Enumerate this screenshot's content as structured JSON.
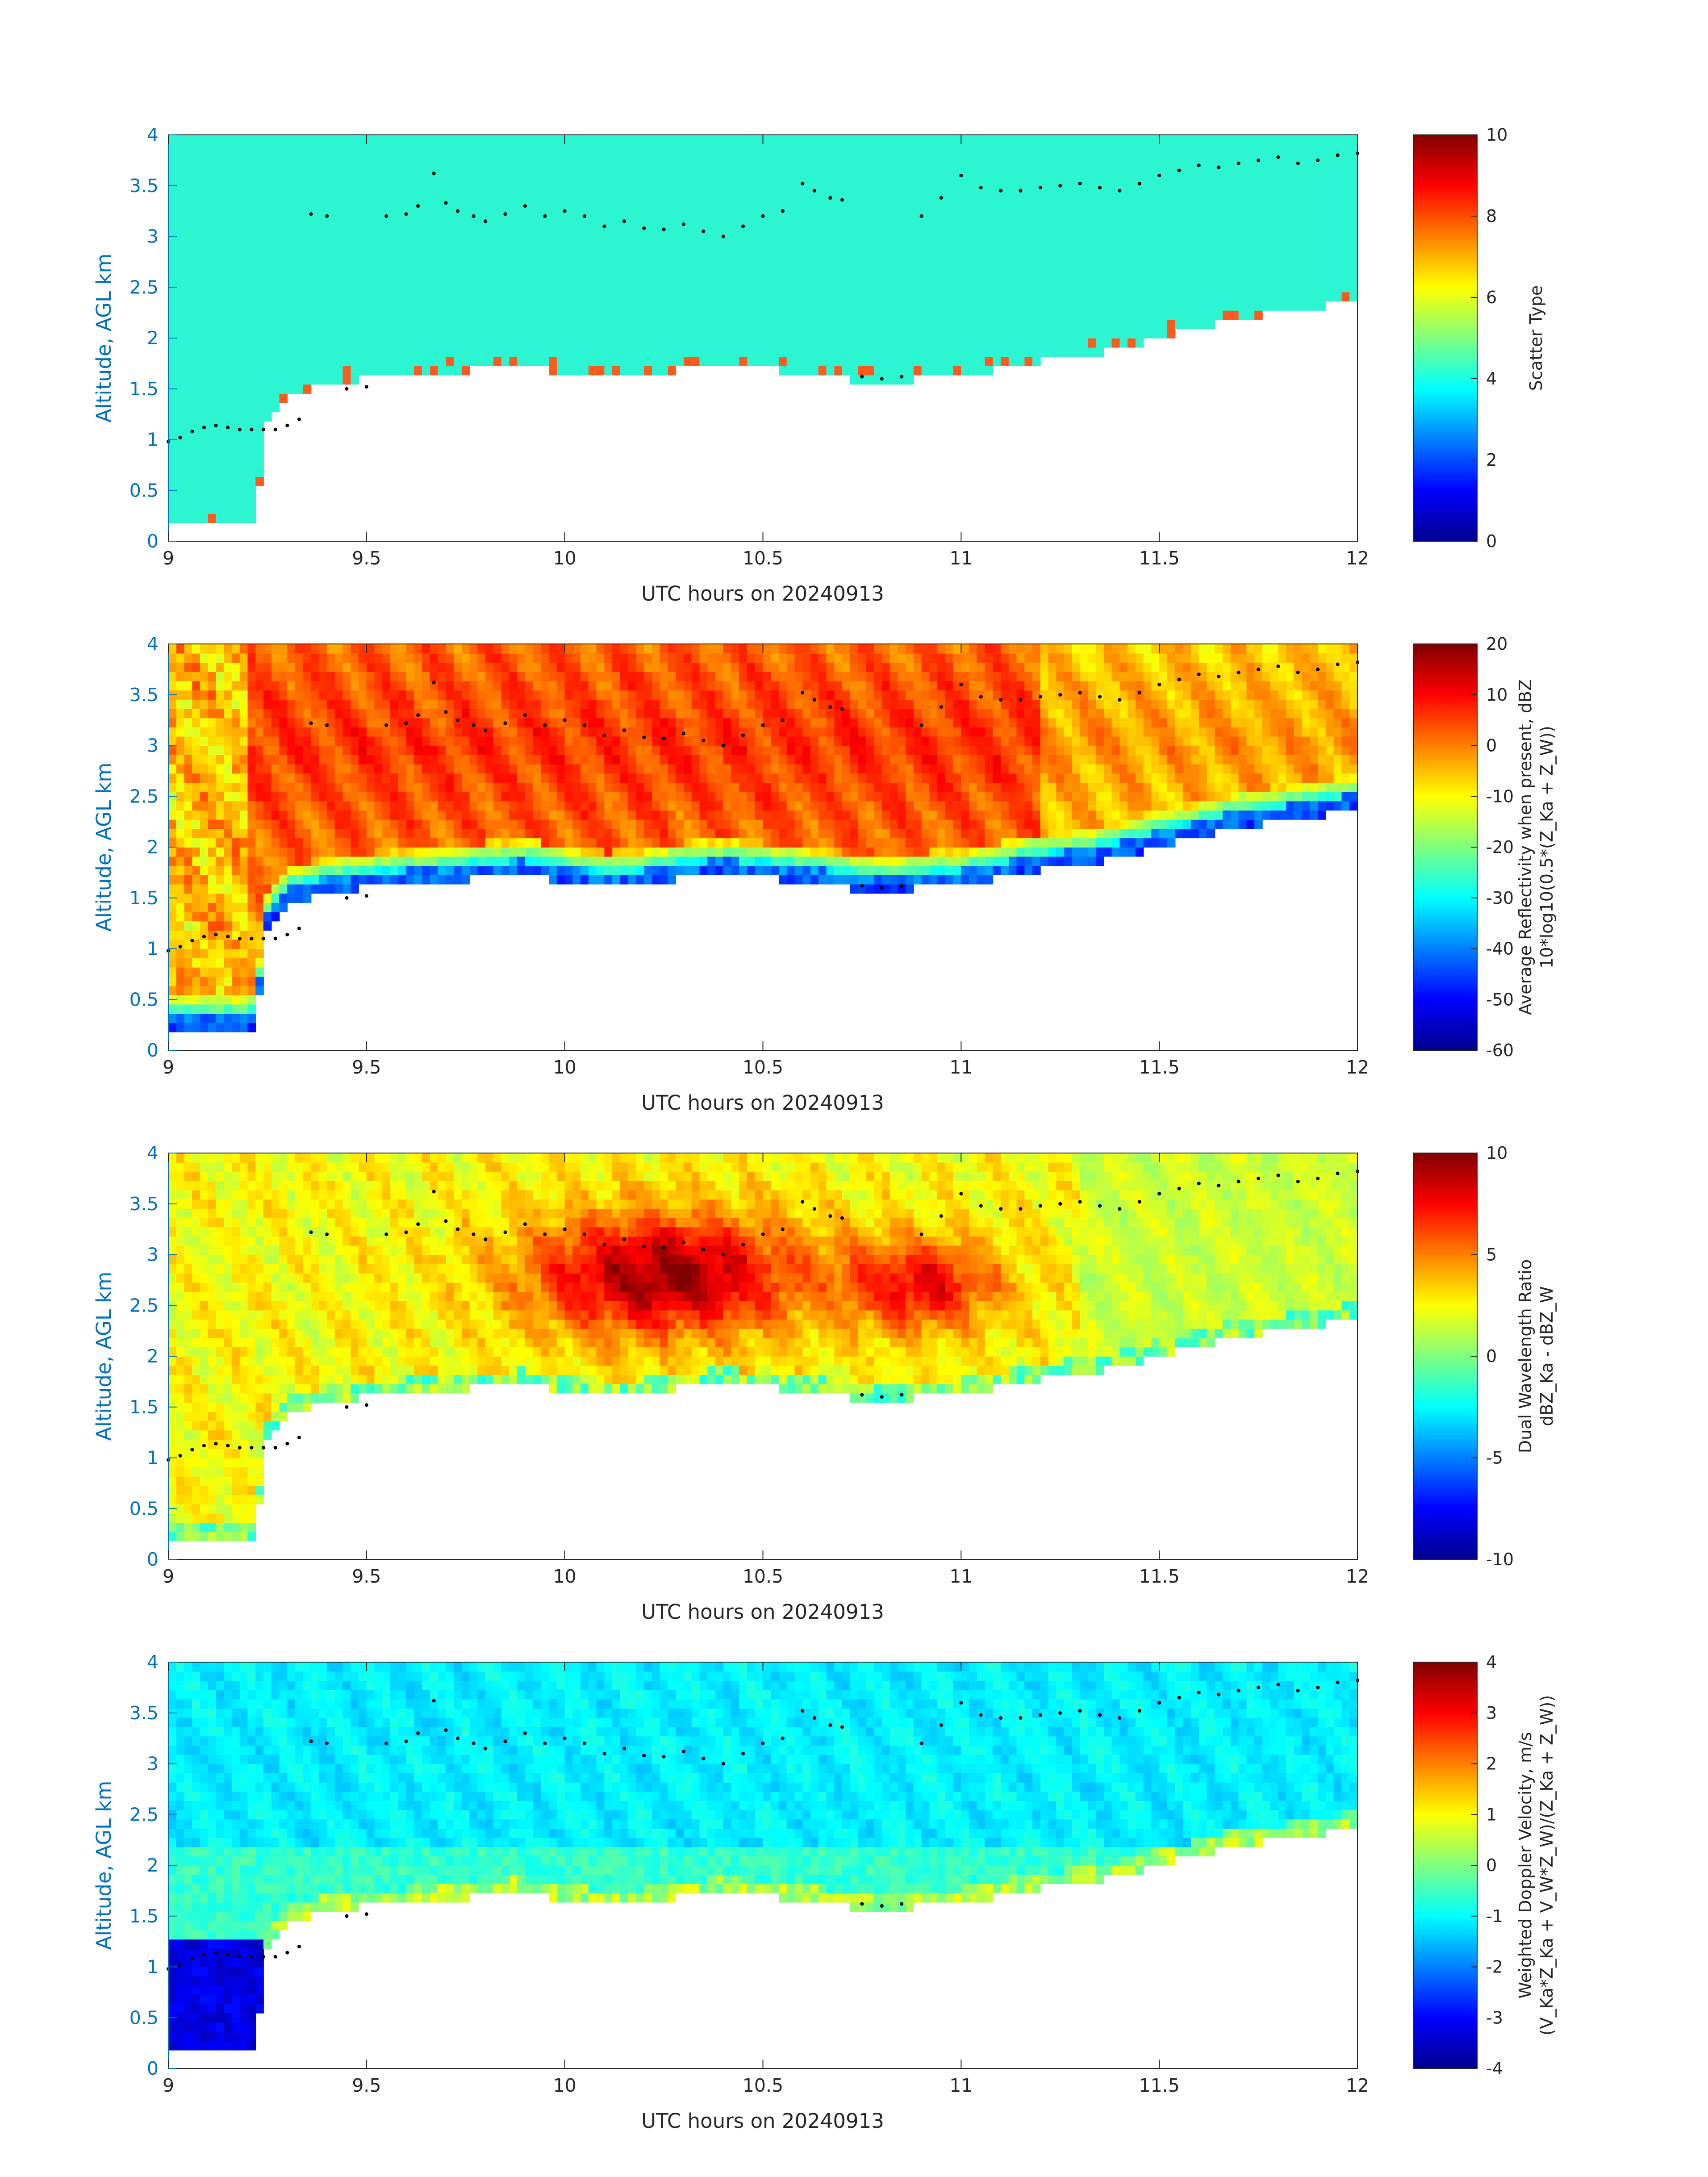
{
  "chart_data": [
    {
      "type": "heatmap",
      "panel": 1,
      "x": {
        "label": "UTC hours on 20240913",
        "lim": [
          9,
          12
        ],
        "ticks": [
          9,
          9.5,
          10,
          10.5,
          11,
          11.5,
          12
        ],
        "tick_labels": [
          "9",
          "9.5",
          "10",
          "10.5",
          "11",
          "11.5",
          "12"
        ]
      },
      "y": {
        "label": "Altitude, AGL km",
        "lim": [
          0,
          4
        ],
        "ticks": [
          0,
          0.5,
          1,
          1.5,
          2,
          2.5,
          3,
          3.5,
          4
        ],
        "tick_labels": [
          "0",
          "0.5",
          "1",
          "1.5",
          "2",
          "2.5",
          "3",
          "3.5",
          "4"
        ]
      },
      "colorbar": {
        "label_lines": [
          "Scatter Type"
        ],
        "lim": [
          0,
          10
        ],
        "ticks": [
          0,
          2,
          4,
          6,
          8,
          10
        ],
        "tick_labels": [
          "0",
          "2",
          "4",
          "6",
          "8",
          "10"
        ],
        "colormap": "jet"
      },
      "field": "scatter_type",
      "dominant_value": 4,
      "colors": {
        "cloud": "#2cf5d2",
        "precip_patches": "#ff5a1e"
      }
    },
    {
      "type": "heatmap",
      "panel": 2,
      "x": {
        "label": "UTC hours on 20240913",
        "lim": [
          9,
          12
        ],
        "ticks": [
          9,
          9.5,
          10,
          10.5,
          11,
          11.5,
          12
        ],
        "tick_labels": [
          "9",
          "9.5",
          "10",
          "10.5",
          "11",
          "11.5",
          "12"
        ]
      },
      "y": {
        "label": "Altitude, AGL km",
        "lim": [
          0,
          4
        ],
        "ticks": [
          0,
          0.5,
          1,
          1.5,
          2,
          2.5,
          3,
          3.5,
          4
        ],
        "tick_labels": [
          "0",
          "0.5",
          "1",
          "1.5",
          "2",
          "2.5",
          "3",
          "3.5",
          "4"
        ]
      },
      "colorbar": {
        "label_lines": [
          "Average Reflectivity when present, dBZ",
          "10*log10(0.5*(Z_Ka + Z_W))"
        ],
        "lim": [
          -60,
          20
        ],
        "ticks": [
          -60,
          -50,
          -40,
          -30,
          -20,
          -10,
          0,
          10,
          20
        ],
        "tick_labels": [
          "-60",
          "-50",
          "-40",
          "-30",
          "-20",
          "-10",
          "0",
          "10",
          "20"
        ],
        "colormap": "jet"
      },
      "field": "reflectivity"
    },
    {
      "type": "heatmap",
      "panel": 3,
      "x": {
        "label": "UTC hours on 20240913",
        "lim": [
          9,
          12
        ],
        "ticks": [
          9,
          9.5,
          10,
          10.5,
          11,
          11.5,
          12
        ],
        "tick_labels": [
          "9",
          "9.5",
          "10",
          "10.5",
          "11",
          "11.5",
          "12"
        ]
      },
      "y": {
        "label": "Altitude, AGL km",
        "lim": [
          0,
          4
        ],
        "ticks": [
          0,
          0.5,
          1,
          1.5,
          2,
          2.5,
          3,
          3.5,
          4
        ],
        "tick_labels": [
          "0",
          "0.5",
          "1",
          "1.5",
          "2",
          "2.5",
          "3",
          "3.5",
          "4"
        ]
      },
      "colorbar": {
        "label_lines": [
          "Dual Wavelength Ratio",
          "dBZ_Ka - dBZ_W"
        ],
        "lim": [
          -10,
          10
        ],
        "ticks": [
          -10,
          -5,
          0,
          5,
          10
        ],
        "tick_labels": [
          "-10",
          "-5",
          "0",
          "5",
          "10"
        ],
        "colormap": "jet"
      },
      "field": "dwr"
    },
    {
      "type": "heatmap",
      "panel": 4,
      "x": {
        "label": "UTC hours on 20240913",
        "lim": [
          9,
          12
        ],
        "ticks": [
          9,
          9.5,
          10,
          10.5,
          11,
          11.5,
          12
        ],
        "tick_labels": [
          "9",
          "9.5",
          "10",
          "10.5",
          "11",
          "11.5",
          "12"
        ]
      },
      "y": {
        "label": "Altitude, AGL km",
        "lim": [
          0,
          4
        ],
        "ticks": [
          0,
          0.5,
          1,
          1.5,
          2,
          2.5,
          3,
          3.5,
          4
        ],
        "tick_labels": [
          "0",
          "0.5",
          "1",
          "1.5",
          "2",
          "2.5",
          "3",
          "3.5",
          "4"
        ]
      },
      "colorbar": {
        "label_lines": [
          "Weighted Doppler Velocity, m/s",
          "(V_Ka*Z_Ka + V_W*Z_W)/(Z_Ka + Z_W))"
        ],
        "lim": [
          -4,
          4
        ],
        "ticks": [
          -4,
          -3,
          -2,
          -1,
          0,
          1,
          2,
          3,
          4
        ],
        "tick_labels": [
          "-4",
          "-3",
          "-2",
          "-1",
          "0",
          "1",
          "2",
          "3",
          "4"
        ],
        "colormap": "jet"
      },
      "field": "doppler_velocity"
    }
  ],
  "cloud_top_km": {
    "x": [
      9.0,
      12.0
    ],
    "y": [
      4.0,
      4.0
    ]
  },
  "cloud_base_km": {
    "x": [
      9.0,
      9.05,
      9.1,
      9.15,
      9.2,
      9.22,
      9.25,
      9.3,
      9.35,
      9.4,
      9.5,
      9.6,
      9.7,
      9.8,
      9.9,
      10.0,
      10.1,
      10.2,
      10.3,
      10.4,
      10.5,
      10.6,
      10.7,
      10.8,
      10.9,
      11.0,
      11.1,
      11.2,
      11.3,
      11.4,
      11.5,
      11.6,
      11.7,
      11.8,
      11.9,
      12.0
    ],
    "y": [
      0.2,
      0.2,
      0.2,
      0.2,
      0.2,
      0.25,
      1.2,
      1.45,
      1.5,
      1.55,
      1.6,
      1.62,
      1.65,
      1.7,
      1.72,
      1.65,
      1.6,
      1.62,
      1.7,
      1.72,
      1.7,
      1.65,
      1.6,
      1.55,
      1.6,
      1.62,
      1.7,
      1.78,
      1.82,
      1.9,
      2.0,
      2.1,
      2.2,
      2.25,
      2.3,
      2.38
    ]
  },
  "markers_km": {
    "x": [
      9.0,
      9.03,
      9.06,
      9.09,
      9.12,
      9.15,
      9.18,
      9.21,
      9.24,
      9.27,
      9.3,
      9.33,
      9.36,
      9.4,
      9.45,
      9.5,
      9.55,
      9.6,
      9.63,
      9.67,
      9.7,
      9.73,
      9.77,
      9.8,
      9.85,
      9.9,
      9.95,
      10.0,
      10.05,
      10.1,
      10.15,
      10.2,
      10.25,
      10.3,
      10.35,
      10.4,
      10.45,
      10.5,
      10.55,
      10.6,
      10.63,
      10.67,
      10.7,
      10.75,
      10.8,
      10.85,
      10.9,
      10.95,
      11.0,
      11.05,
      11.1,
      11.15,
      11.2,
      11.25,
      11.3,
      11.35,
      11.4,
      11.45,
      11.5,
      11.55,
      11.6,
      11.65,
      11.7,
      11.75,
      11.8,
      11.85,
      11.9,
      11.95,
      12.0
    ],
    "y": [
      0.98,
      1.02,
      1.08,
      1.12,
      1.14,
      1.12,
      1.1,
      1.1,
      1.1,
      1.1,
      1.14,
      1.2,
      3.22,
      3.2,
      1.5,
      1.52,
      3.2,
      3.22,
      3.3,
      3.62,
      3.33,
      3.25,
      3.2,
      3.15,
      3.22,
      3.3,
      3.2,
      3.25,
      3.2,
      3.1,
      3.15,
      3.08,
      3.07,
      3.12,
      3.05,
      3.0,
      3.1,
      3.2,
      3.25,
      3.52,
      3.45,
      3.38,
      3.36,
      1.62,
      1.6,
      1.62,
      3.2,
      3.38,
      3.6,
      3.48,
      3.45,
      3.45,
      3.48,
      3.5,
      3.52,
      3.48,
      3.45,
      3.52,
      3.6,
      3.65,
      3.7,
      3.68,
      3.72,
      3.75,
      3.78,
      3.72,
      3.75,
      3.8,
      3.82
    ]
  }
}
